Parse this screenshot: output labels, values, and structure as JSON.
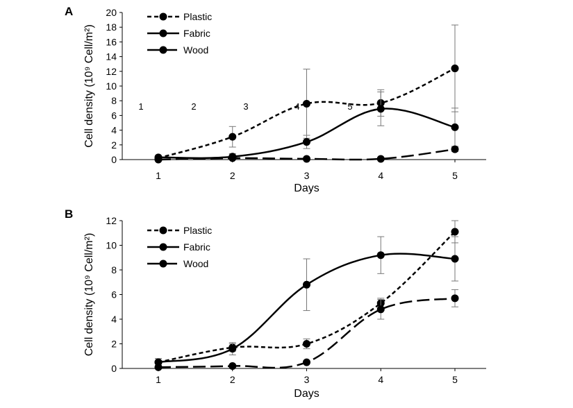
{
  "chart_data": [
    {
      "panel": "A",
      "type": "line",
      "categories": [
        "1",
        "2",
        "3",
        "4",
        "5"
      ],
      "xlabel": "Days",
      "ylabel": "Cell density (10⁹ Cell/m²)",
      "ylim": [
        0,
        20
      ],
      "yticks": [
        0,
        2,
        4,
        6,
        8,
        10,
        12,
        14,
        16,
        18,
        20
      ],
      "legend_position": "top-left",
      "stray_labels": [
        "1",
        "2",
        "3",
        "4",
        "5"
      ],
      "series": [
        {
          "name": "Plastic",
          "style": "short-dash",
          "values": [
            0.2,
            3.1,
            7.6,
            7.7,
            12.4
          ],
          "errors": [
            0.2,
            1.4,
            4.7,
            1.8,
            5.9
          ]
        },
        {
          "name": "Fabric",
          "style": "solid",
          "values": [
            0.3,
            0.4,
            2.4,
            6.9,
            4.4
          ],
          "errors": [
            0.2,
            0.4,
            0.9,
            2.3,
            2.6
          ]
        },
        {
          "name": "Wood",
          "style": "long-dash",
          "values": [
            0.0,
            0.2,
            0.1,
            0.1,
            1.4
          ],
          "errors": [
            0.0,
            0.1,
            0.0,
            0.0,
            0.3
          ]
        }
      ]
    },
    {
      "panel": "B",
      "type": "line",
      "categories": [
        "1",
        "2",
        "3",
        "4",
        "5"
      ],
      "xlabel": "Days",
      "ylabel": "Cell density (10⁹ Cell/m²)",
      "ylim": [
        0,
        12
      ],
      "yticks": [
        0,
        2,
        4,
        6,
        8,
        10,
        12
      ],
      "legend_position": "top-left",
      "series": [
        {
          "name": "Plastic",
          "style": "short-dash",
          "values": [
            0.5,
            1.7,
            2.0,
            5.3,
            11.1
          ],
          "errors": [
            0.3,
            0.3,
            0.4,
            0.4,
            0.9
          ]
        },
        {
          "name": "Fabric",
          "style": "solid",
          "values": [
            0.5,
            1.6,
            6.8,
            9.2,
            8.9
          ],
          "errors": [
            0.3,
            0.5,
            2.1,
            1.5,
            1.8
          ]
        },
        {
          "name": "Wood",
          "style": "long-dash",
          "values": [
            0.1,
            0.2,
            0.5,
            4.8,
            5.7
          ],
          "errors": [
            0.0,
            0.1,
            0.1,
            0.8,
            0.7
          ]
        }
      ]
    }
  ]
}
